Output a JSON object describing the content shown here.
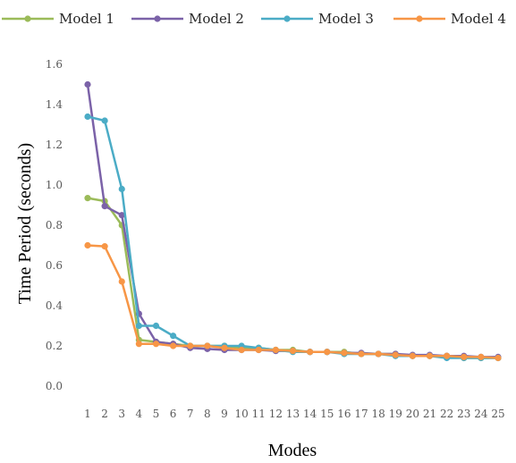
{
  "chart_data": {
    "type": "line",
    "title": "",
    "xlabel": "Modes",
    "ylabel": "Time Period (seconds)",
    "ylim": [
      0,
      1.6
    ],
    "yticks": [
      0.0,
      0.2,
      0.4,
      0.6,
      0.8,
      1.0,
      1.2,
      1.4,
      1.6
    ],
    "ytick_labels": [
      "0.0",
      "0.2",
      "0.4",
      "0.6",
      "0.8",
      "1.0",
      "1.2",
      "1.4",
      "1.6"
    ],
    "grid": false,
    "legend_position": "top",
    "categories": [
      "1",
      "2",
      "3",
      "4",
      "5",
      "6",
      "7",
      "8",
      "9",
      "10",
      "11",
      "12",
      "13",
      "14",
      "15",
      "16",
      "17",
      "18",
      "19",
      "20",
      "21",
      "22",
      "23",
      "24",
      "25"
    ],
    "series": [
      {
        "name": "Model 1",
        "color": "#9BBB59",
        "values": [
          0.935,
          0.92,
          0.8,
          0.23,
          0.22,
          0.21,
          0.2,
          0.2,
          0.2,
          0.19,
          0.19,
          0.18,
          0.18,
          0.17,
          0.17,
          0.17,
          0.16,
          0.16,
          0.16,
          0.15,
          0.15,
          0.15,
          0.14,
          0.14,
          0.14
        ]
      },
      {
        "name": "Model 2",
        "color": "#7B62A8",
        "values": [
          1.5,
          0.895,
          0.85,
          0.36,
          0.22,
          0.21,
          0.19,
          0.185,
          0.18,
          0.18,
          0.18,
          0.175,
          0.175,
          0.17,
          0.17,
          0.165,
          0.165,
          0.16,
          0.16,
          0.155,
          0.155,
          0.15,
          0.15,
          0.145,
          0.145
        ]
      },
      {
        "name": "Model 3",
        "color": "#4BACC6",
        "values": [
          1.34,
          1.32,
          0.98,
          0.3,
          0.3,
          0.25,
          0.2,
          0.2,
          0.2,
          0.2,
          0.19,
          0.18,
          0.17,
          0.17,
          0.17,
          0.16,
          0.16,
          0.16,
          0.15,
          0.15,
          0.15,
          0.14,
          0.14,
          0.14,
          0.14
        ]
      },
      {
        "name": "Model 4",
        "color": "#F79646",
        "values": [
          0.7,
          0.695,
          0.52,
          0.21,
          0.21,
          0.2,
          0.2,
          0.2,
          0.19,
          0.18,
          0.18,
          0.18,
          0.175,
          0.17,
          0.17,
          0.165,
          0.16,
          0.16,
          0.155,
          0.15,
          0.15,
          0.15,
          0.145,
          0.145,
          0.14
        ]
      }
    ]
  }
}
